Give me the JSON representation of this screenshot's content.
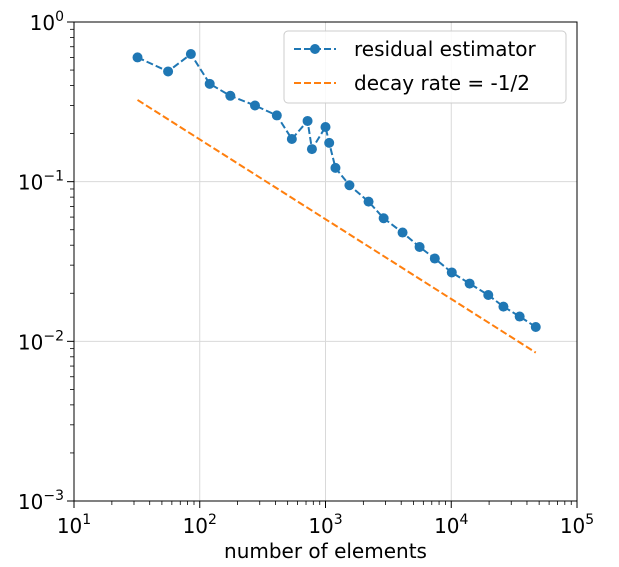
{
  "chart_data": {
    "type": "line",
    "xscale": "log",
    "yscale": "log",
    "xlabel": "number of elements",
    "ylabel": "",
    "title": "",
    "xlim": [
      10,
      100000
    ],
    "ylim": [
      0.001,
      1
    ],
    "grid": true,
    "legend_position": "upper-right",
    "x_ticks": [
      {
        "base": "10",
        "exp": "1",
        "value": 10
      },
      {
        "base": "10",
        "exp": "2",
        "value": 100
      },
      {
        "base": "10",
        "exp": "3",
        "value": 1000
      },
      {
        "base": "10",
        "exp": "4",
        "value": 10000
      },
      {
        "base": "10",
        "exp": "5",
        "value": 100000
      }
    ],
    "y_ticks": [
      {
        "base": "10",
        "exp": "0",
        "value": 1
      },
      {
        "base": "10",
        "exp": "−1",
        "value": 0.1
      },
      {
        "base": "10",
        "exp": "−2",
        "value": 0.01
      },
      {
        "base": "10",
        "exp": "−3",
        "value": 0.001
      }
    ],
    "series": [
      {
        "name": "residual estimator",
        "color": "#1f77b4",
        "linestyle": "dashed",
        "marker": "circle",
        "x": [
          32,
          56,
          85,
          120,
          175,
          275,
          410,
          540,
          720,
          780,
          1000,
          1070,
          1200,
          1550,
          2200,
          2900,
          4100,
          5600,
          7400,
          10100,
          14000,
          19700,
          26000,
          35000,
          47000
        ],
        "y": [
          0.6,
          0.49,
          0.63,
          0.41,
          0.345,
          0.3,
          0.26,
          0.185,
          0.24,
          0.16,
          0.22,
          0.175,
          0.122,
          0.095,
          0.075,
          0.059,
          0.048,
          0.039,
          0.033,
          0.027,
          0.023,
          0.0195,
          0.0165,
          0.0143,
          0.0123
        ]
      },
      {
        "name": "decay rate = -1/2",
        "color": "#ff7f0e",
        "linestyle": "dashed",
        "marker": "none",
        "x": [
          32,
          47000
        ],
        "y": [
          0.325,
          0.0085
        ]
      }
    ]
  }
}
